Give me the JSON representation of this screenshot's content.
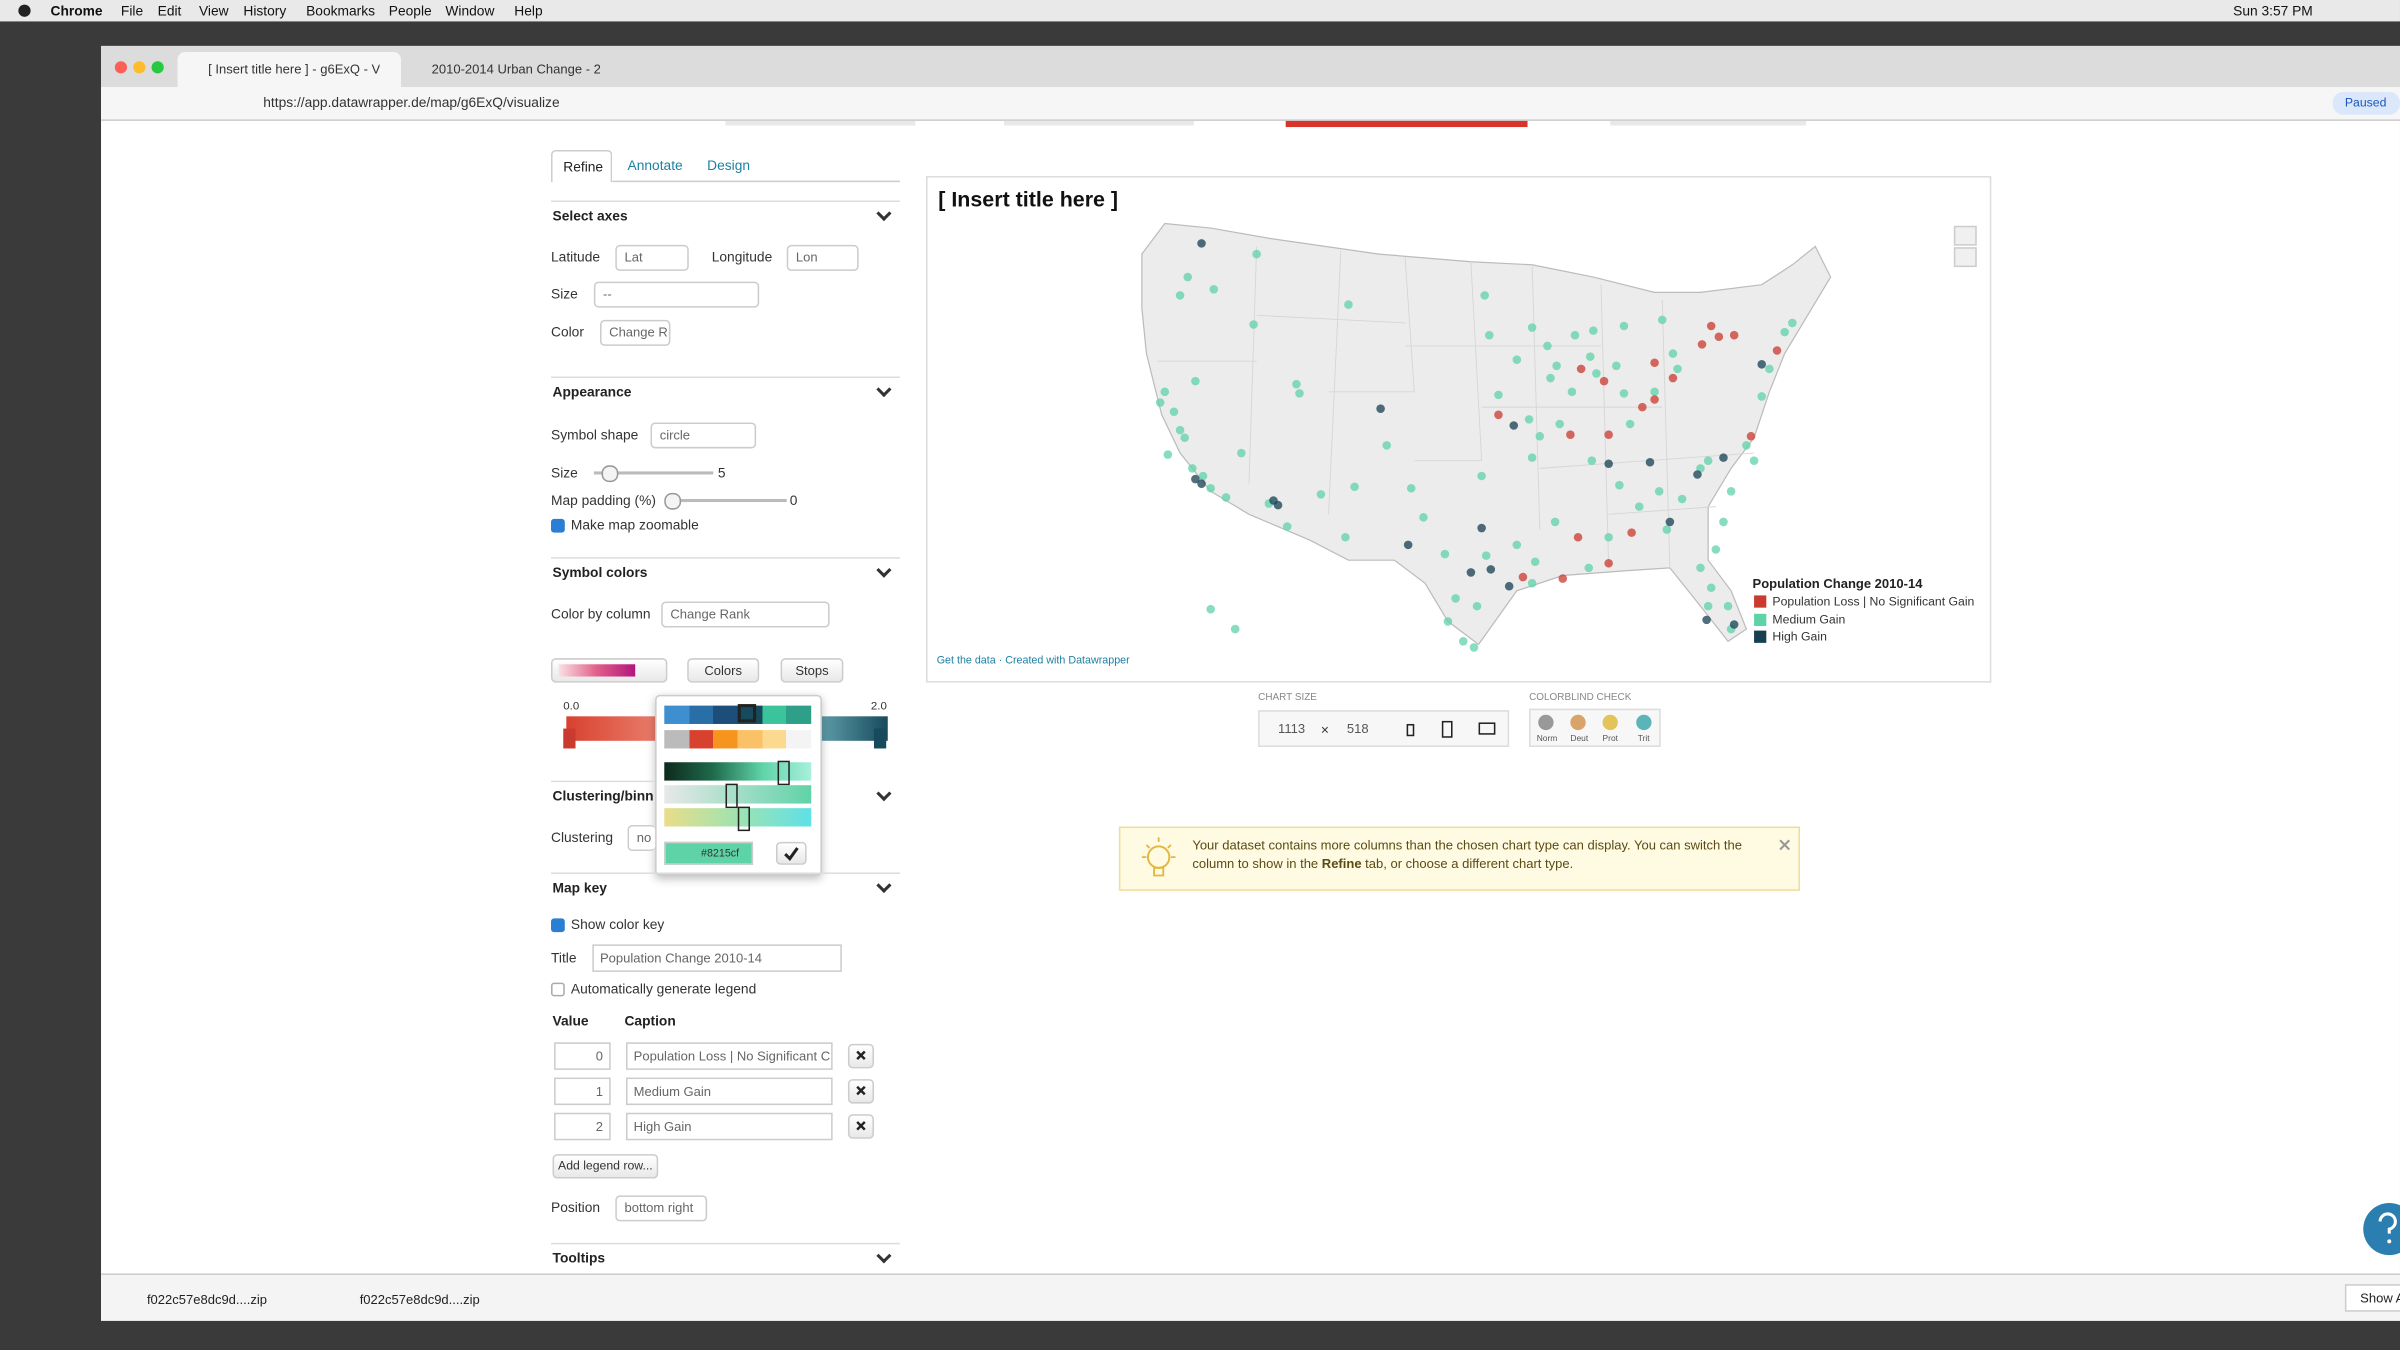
{
  "menu_bar": {
    "app": "Chrome",
    "items": [
      "File",
      "Edit",
      "View",
      "History",
      "Bookmarks",
      "People",
      "Window",
      "Help"
    ],
    "clock": "Sun 3:57 PM"
  },
  "browser": {
    "tabs": [
      "[ Insert title here ] - g6ExQ - V",
      "2010-2014 Urban Change - 2("
    ],
    "url": "https://app.datawrapper.de/map/g6ExQ/visualize",
    "profile": "Paused"
  },
  "sidebar": {
    "tabs": [
      "Refine",
      "Annotate",
      "Design"
    ],
    "select_axes": {
      "heading": "Select axes",
      "latitude": {
        "label": "Latitude",
        "value": "Lat"
      },
      "longitude": {
        "label": "Longitude",
        "value": "Lon"
      },
      "size": {
        "label": "Size",
        "value": "--"
      },
      "color": {
        "label": "Color",
        "value": "Change R"
      }
    },
    "appearance": {
      "heading": "Appearance",
      "symbol_shape": {
        "label": "Symbol shape",
        "value": "circle"
      },
      "size": {
        "label": "Size",
        "value": 5
      },
      "map_padding": {
        "label": "Map padding (%)",
        "value": 0
      },
      "zoomable": "Make map zoomable"
    },
    "symbol_colors": {
      "heading": "Symbol colors",
      "color_by": {
        "label": "Color by column",
        "value": "Change Rank"
      },
      "buttons": [
        "Colors",
        "Stops"
      ],
      "range": [
        "0.0",
        "2.0"
      ],
      "picker_hex": "#8215cf"
    },
    "clustering": {
      "heading": "Clustering/binnir",
      "label": "Clustering",
      "value": "no"
    },
    "map_key": {
      "heading": "Map key",
      "show_key": "Show color key",
      "title": {
        "label": "Title",
        "value": "Population Change 2010-14"
      },
      "auto_legend": "Automatically generate legend",
      "columns": [
        "Value",
        "Caption"
      ],
      "rows": [
        [
          "0",
          "Population Loss | No Significant C"
        ],
        [
          "1",
          "Medium Gain"
        ],
        [
          "2",
          "High Gain"
        ]
      ],
      "add_row": "Add legend row...",
      "position": {
        "label": "Position",
        "value": "bottom right"
      }
    },
    "tooltips": {
      "heading": "Tooltips"
    }
  },
  "chart": {
    "title": "[ Insert title here ]",
    "legend": {
      "title": "Population Change 2010-14",
      "items": [
        {
          "label": "Population Loss | No Significant Gain",
          "color": "#c93a2f"
        },
        {
          "label": "Medium Gain",
          "color": "#5fd3a8"
        },
        {
          "label": "High Gain",
          "color": "#163f52"
        }
      ]
    },
    "footer": "Get the data · Created with Datawrapper"
  },
  "chart_size": {
    "label": "CHART SIZE",
    "width": "1113",
    "times": "×",
    "height": "518"
  },
  "colorblind": {
    "label": "COLORBLIND CHECK",
    "modes": [
      "Norm",
      "Deut",
      "Prot",
      "Trit"
    ]
  },
  "notice": {
    "before": "Your dataset contains more columns than the chosen chart type can display. You can switch the column to show in the ",
    "link": "Refine",
    "after": " tab, or choose a different chart type."
  },
  "downloads": {
    "files": [
      "f022c57e8dc9d....zip",
      "f022c57e8dc9d....zip"
    ],
    "show_all": "Show A"
  }
}
